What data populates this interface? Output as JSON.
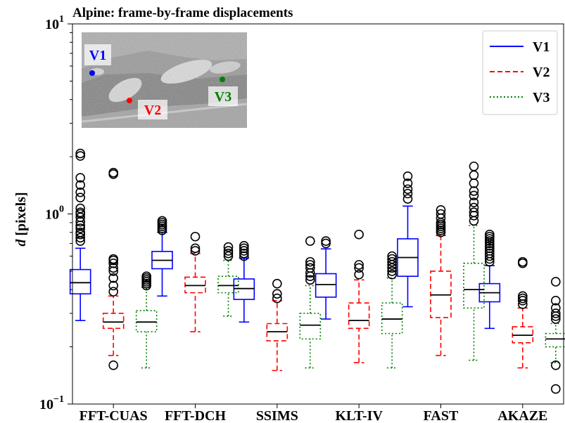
{
  "chart_data": {
    "type": "boxplot",
    "title": "Alpine: frame-by-frame displacements",
    "ylabel_italic": "d",
    "ylabel_rest": " [pixels]",
    "y_scale": "log",
    "ylim": [
      0.1,
      10
    ],
    "y_ticks": [
      {
        "value": 0.1,
        "base": "10",
        "exp": "−1"
      },
      {
        "value": 1,
        "base": "10",
        "exp": "0"
      },
      {
        "value": 10,
        "base": "10",
        "exp": "1"
      }
    ],
    "grid": false,
    "legend_position": "top-right",
    "categories": [
      "FFT-CUAS",
      "FFT-DCH",
      "SSIMS",
      "KLT-IV",
      "FAST",
      "AKAZE"
    ],
    "series": [
      {
        "name": "V1",
        "color": "#0000ff",
        "dash": "solid",
        "data": [
          {
            "whislo": 0.275,
            "q1": 0.38,
            "med": 0.435,
            "q3": 0.51,
            "whishi": 0.66,
            "fliers": [
              0.72,
              0.75,
              0.78,
              0.8,
              0.84,
              0.87,
              0.91,
              0.96,
              1.0,
              1.02,
              1.07,
              1.22,
              1.3,
              1.42,
              1.55,
              2.02,
              2.08
            ]
          },
          {
            "whislo": 0.37,
            "q1": 0.515,
            "med": 0.57,
            "q3": 0.635,
            "whishi": 0.8,
            "fliers": [
              0.82,
              0.84,
              0.86,
              0.88,
              0.9,
              0.92
            ]
          },
          {
            "whislo": 0.27,
            "q1": 0.355,
            "med": 0.405,
            "q3": 0.455,
            "whishi": 0.585,
            "fliers": [
              0.6,
              0.62,
              0.64,
              0.66,
              0.68
            ]
          },
          {
            "whislo": 0.28,
            "q1": 0.365,
            "med": 0.425,
            "q3": 0.485,
            "whishi": 0.655,
            "fliers": [
              0.7,
              0.72
            ]
          },
          {
            "whislo": 0.325,
            "q1": 0.47,
            "med": 0.59,
            "q3": 0.74,
            "whishi": 1.1,
            "fliers": [
              1.2,
              1.28,
              1.35,
              1.45,
              1.58
            ]
          },
          {
            "whislo": 0.25,
            "q1": 0.345,
            "med": 0.385,
            "q3": 0.43,
            "whishi": 0.535,
            "fliers": [
              0.56,
              0.58,
              0.6,
              0.62,
              0.64,
              0.66,
              0.68,
              0.7,
              0.72,
              0.74,
              0.76,
              0.78
            ]
          }
        ]
      },
      {
        "name": "V2",
        "color": "#ff0000",
        "dash": "7,4",
        "data": [
          {
            "whislo": 0.18,
            "q1": 0.25,
            "med": 0.27,
            "q3": 0.3,
            "whishi": 0.37,
            "fliers": [
              0.16,
              0.39,
              0.42,
              0.46,
              0.5,
              0.52,
              0.55,
              0.57,
              0.58,
              1.62,
              1.65
            ]
          },
          {
            "whislo": 0.24,
            "q1": 0.385,
            "med": 0.42,
            "q3": 0.465,
            "whishi": 0.62,
            "fliers": [
              0.64,
              0.66,
              0.76
            ]
          },
          {
            "whislo": 0.15,
            "q1": 0.215,
            "med": 0.24,
            "q3": 0.265,
            "whishi": 0.35,
            "fliers": [
              0.36,
              0.38,
              0.43
            ]
          },
          {
            "whislo": 0.165,
            "q1": 0.25,
            "med": 0.275,
            "q3": 0.34,
            "whishi": 0.45,
            "fliers": [
              0.48,
              0.52,
              0.54,
              0.78
            ]
          },
          {
            "whislo": 0.18,
            "q1": 0.285,
            "med": 0.375,
            "q3": 0.5,
            "whishi": 0.77,
            "fliers": [
              0.8,
              0.82,
              0.84,
              0.86,
              0.88,
              0.9,
              0.95,
              1.0,
              1.05
            ]
          },
          {
            "whislo": 0.155,
            "q1": 0.21,
            "med": 0.23,
            "q3": 0.255,
            "whishi": 0.32,
            "fliers": [
              0.335,
              0.35,
              0.36,
              0.37,
              0.55,
              0.56
            ]
          }
        ]
      },
      {
        "name": "V3",
        "color": "#008000",
        "dash": "2,3",
        "data": [
          {
            "whislo": 0.155,
            "q1": 0.24,
            "med": 0.27,
            "q3": 0.31,
            "whishi": 0.41,
            "fliers": [
              0.42,
              0.43,
              0.44,
              0.45,
              0.46,
              0.47
            ]
          },
          {
            "whislo": 0.29,
            "q1": 0.385,
            "med": 0.42,
            "q3": 0.47,
            "whishi": 0.57,
            "fliers": [
              0.6,
              0.62,
              0.64,
              0.67
            ]
          },
          {
            "whislo": 0.155,
            "q1": 0.22,
            "med": 0.26,
            "q3": 0.3,
            "whishi": 0.42,
            "fliers": [
              0.45,
              0.47,
              0.49,
              0.52,
              0.54,
              0.56,
              0.72
            ]
          },
          {
            "whislo": 0.155,
            "q1": 0.235,
            "med": 0.28,
            "q3": 0.34,
            "whishi": 0.46,
            "fliers": [
              0.48,
              0.5,
              0.52,
              0.54,
              0.56,
              0.58,
              0.6
            ]
          },
          {
            "whislo": 0.17,
            "q1": 0.32,
            "med": 0.4,
            "q3": 0.55,
            "whishi": 0.87,
            "fliers": [
              0.92,
              0.98,
              1.02,
              1.08,
              1.15,
              1.25,
              1.32,
              1.45,
              1.6,
              1.78
            ]
          },
          {
            "whislo": 0.165,
            "q1": 0.2,
            "med": 0.22,
            "q3": 0.235,
            "whishi": 0.265,
            "fliers": [
              0.12,
              0.16,
              0.28,
              0.29,
              0.3,
              0.32,
              0.35,
              0.44
            ]
          }
        ]
      }
    ],
    "inset": {
      "points": [
        {
          "label": "V1",
          "color": "#0000ff"
        },
        {
          "label": "V2",
          "color": "#ff0000"
        },
        {
          "label": "V3",
          "color": "#008000"
        }
      ]
    }
  }
}
